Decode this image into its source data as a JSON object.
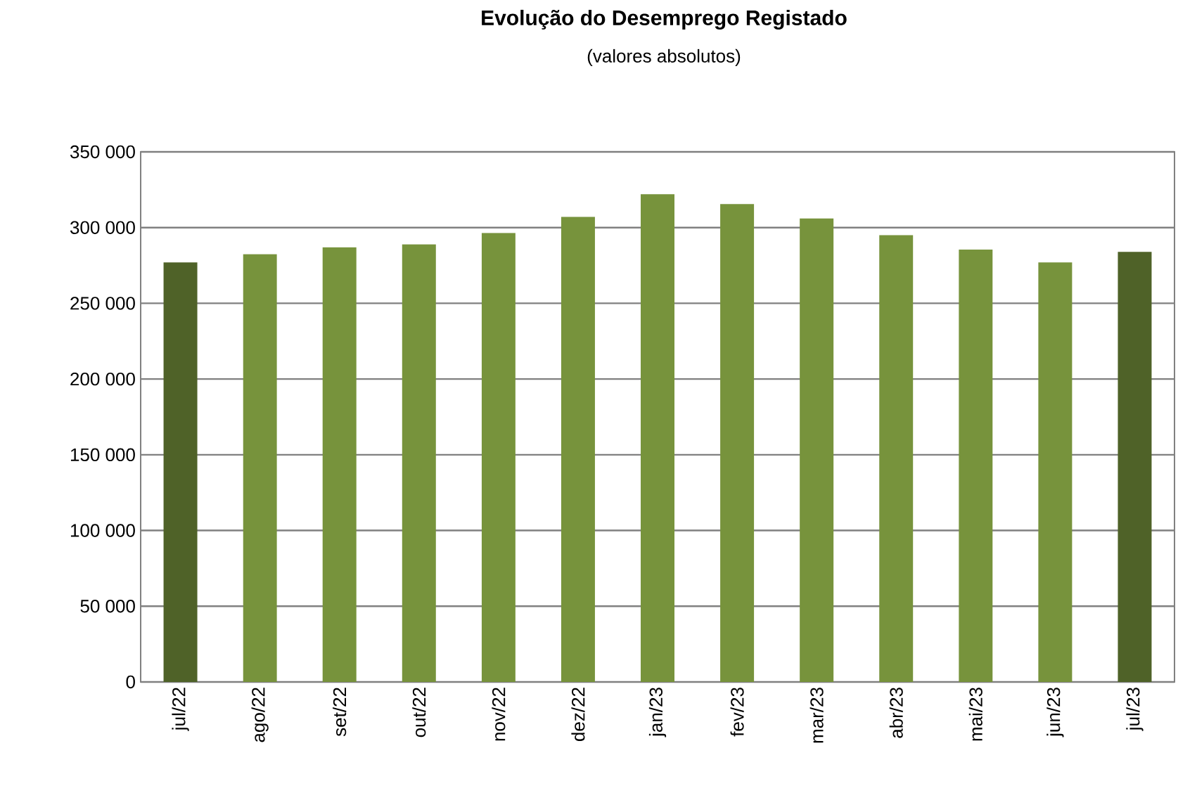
{
  "chart_data": {
    "type": "bar",
    "title": "Evolução do Desemprego Registado",
    "subtitle": "(valores absolutos)",
    "categories": [
      "jul/22",
      "ago/22",
      "set/22",
      "out/22",
      "nov/22",
      "dez/22",
      "jan/23",
      "fev/23",
      "mar/23",
      "abr/23",
      "mai/23",
      "jun/23",
      "jul/23"
    ],
    "values": [
      277000,
      282500,
      287000,
      289000,
      296500,
      307000,
      322000,
      315500,
      306000,
      295000,
      285500,
      277000,
      284000
    ],
    "colors": [
      "#4f6228",
      "#77933c",
      "#77933c",
      "#77933c",
      "#77933c",
      "#77933c",
      "#77933c",
      "#77933c",
      "#77933c",
      "#77933c",
      "#77933c",
      "#77933c",
      "#4f6228"
    ],
    "ylim": [
      0,
      350000
    ],
    "yticks": [
      0,
      {
        "value": 50000,
        "label": "50 000"
      },
      {
        "value": 100000,
        "label": "100 000"
      },
      {
        "value": 150000,
        "label": "150 000"
      },
      {
        "value": 200000,
        "label": "200 000"
      },
      {
        "value": 250000,
        "label": "250 000"
      },
      {
        "value": 300000,
        "label": "300 000"
      },
      {
        "value": 350000,
        "label": "350 000"
      }
    ],
    "grid": "y"
  }
}
